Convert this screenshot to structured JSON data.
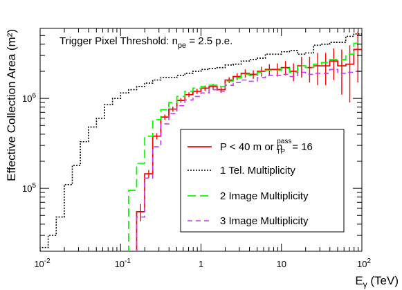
{
  "chart_data": {
    "type": "line",
    "xscale": "log",
    "yscale": "log",
    "xlim": [
      0.01,
      100
    ],
    "ylim": [
      20000,
      6000000
    ],
    "xlabel_main": "E",
    "xlabel_sub": "γ",
    "xlabel_unit": " (TeV)",
    "ylabel": "Effective Collection Area (m²)",
    "x_ticks": [
      {
        "value": 0.01,
        "base": "10",
        "exp": "-2"
      },
      {
        "value": 0.1,
        "base": "10",
        "exp": "-1"
      },
      {
        "value": 1,
        "base": "1",
        "exp": ""
      },
      {
        "value": 10,
        "base": "10",
        "exp": ""
      },
      {
        "value": 100,
        "base": "10",
        "exp": "2"
      }
    ],
    "y_ticks": [
      {
        "value": 100000,
        "base": "10",
        "exp": "5"
      },
      {
        "value": 1000000,
        "base": "10",
        "exp": "6"
      }
    ],
    "annotation": {
      "prefix": "Trigger Pixel Threshold: n",
      "sub": "pe",
      "suffix": " = 2.5 p.e."
    },
    "legend": {
      "placement": "center-right",
      "entries": [
        {
          "main": "P < 40 m or n",
          "sub": "TP",
          "sup": "pass",
          "tail": " = 16"
        },
        {
          "main": "1 Tel. Multiplicity",
          "sub": "",
          "sup": "",
          "tail": ""
        },
        {
          "main": "2 Image Multiplicity",
          "sub": "",
          "sup": "",
          "tail": ""
        },
        {
          "main": "3 Image Multiplicity",
          "sub": "",
          "sup": "",
          "tail": ""
        }
      ]
    },
    "bin_edges_log10": [
      -2.0,
      -1.9,
      -1.8,
      -1.7,
      -1.6,
      -1.5,
      -1.4,
      -1.3,
      -1.2,
      -1.1,
      -1.0,
      -0.9,
      -0.8,
      -0.7,
      -0.6,
      -0.5,
      -0.4,
      -0.3,
      -0.2,
      -0.1,
      0.0,
      0.1,
      0.2,
      0.3,
      0.4,
      0.5,
      0.6,
      0.7,
      0.8,
      0.9,
      1.0,
      1.1,
      1.2,
      1.3,
      1.4,
      1.5,
      1.6,
      1.7,
      1.8,
      1.9,
      2.0
    ],
    "series": [
      {
        "color": "#ff0000",
        "dash": "",
        "width": 1.8,
        "values": [
          null,
          null,
          null,
          null,
          null,
          null,
          null,
          null,
          null,
          null,
          null,
          null,
          55000,
          145000,
          380000,
          620000,
          760000,
          950000,
          1100000,
          1200000,
          1300000,
          1350000,
          1250000,
          1600000,
          1750000,
          1900000,
          1850000,
          2000000,
          2100000,
          2100000,
          2200000,
          2000000,
          2300000,
          2200000,
          2300000,
          2300000,
          2600000,
          2300000,
          2400000,
          3500000
        ],
        "errors": [
          null,
          null,
          null,
          null,
          null,
          null,
          null,
          null,
          null,
          null,
          null,
          null,
          12000,
          15000,
          30000,
          40000,
          50000,
          60000,
          70000,
          80000,
          90000,
          100000,
          100000,
          120000,
          150000,
          200000,
          200000,
          250000,
          300000,
          350000,
          400000,
          450000,
          600000,
          700000,
          900000,
          900000,
          1000000,
          1200000,
          1500000,
          2000000
        ]
      },
      {
        "color": "#000000",
        "dash": "2,2",
        "width": 1.6,
        "values": [
          22000,
          30000,
          48000,
          110000,
          180000,
          330000,
          480000,
          600000,
          850000,
          1000000,
          1150000,
          1250000,
          1350000,
          1480000,
          1600000,
          1700000,
          1700000,
          1800000,
          1900000,
          2000000,
          2100000,
          2150000,
          2200000,
          2350000,
          2400000,
          2600000,
          2700000,
          2800000,
          3100000,
          3100000,
          3300000,
          3400000,
          3100000,
          3200000,
          3900000,
          4000000,
          4200000,
          4200000,
          4900000,
          5200000
        ],
        "errors": []
      },
      {
        "color": "#00ff00",
        "dash": "12,6",
        "width": 1.8,
        "values": [
          null,
          null,
          null,
          null,
          null,
          null,
          null,
          null,
          null,
          null,
          null,
          95000,
          190000,
          380000,
          580000,
          750000,
          900000,
          1050000,
          1200000,
          1300000,
          1350000,
          1400000,
          1350000,
          1550000,
          1700000,
          1850000,
          1800000,
          1950000,
          2050000,
          2050000,
          2150000,
          1950000,
          2300000,
          2200000,
          2400000,
          2500000,
          2700000,
          2700000,
          3100000,
          4100000
        ],
        "errors": []
      },
      {
        "color": "#cc33ff",
        "dash": "7,5",
        "width": 1.6,
        "values": [
          null,
          null,
          null,
          null,
          null,
          null,
          null,
          null,
          null,
          null,
          null,
          null,
          48000,
          130000,
          290000,
          520000,
          680000,
          830000,
          960000,
          1050000,
          1150000,
          1250000,
          1200000,
          1400000,
          1500000,
          1600000,
          1550000,
          1700000,
          1800000,
          1800000,
          1850000,
          1750000,
          1950000,
          1850000,
          1900000,
          1900000,
          2100000,
          1900000,
          1950000,
          2000000
        ],
        "errors": []
      }
    ]
  }
}
